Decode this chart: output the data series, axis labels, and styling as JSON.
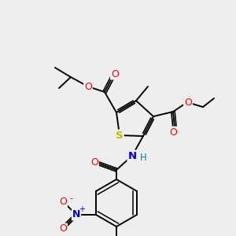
{
  "bg_color": "#eeeeee",
  "atom_colors": {
    "O": "#ff0000",
    "N_blue": "#0000cc",
    "S": "#bbbb00",
    "C": "#000000",
    "H": "#008888"
  },
  "bond_color": "#000000",
  "figsize": [
    3.0,
    3.0
  ],
  "dpi": 100
}
